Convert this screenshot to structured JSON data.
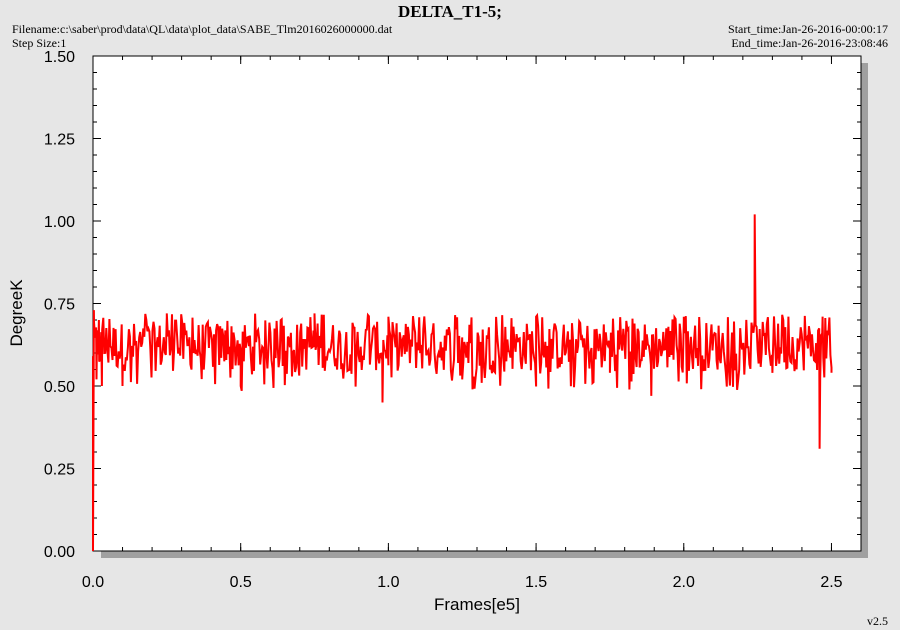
{
  "header": {
    "title": "DELTA_T1-5;",
    "filename": "Filename:c:\\saber\\prod\\data\\QL\\data\\plot_data\\SABE_Tlm2016026000000.dat",
    "step_size": "Step Size:1",
    "start_time": "Start_time:Jan-26-2016-00:00:17",
    "end_time": "End_time:Jan-26-2016-23:08:46"
  },
  "footer": {
    "version": "v2.5"
  },
  "colors": {
    "series": "#ff0000",
    "plot_bg": "#ffffff",
    "page_bg": "#e6e6e6",
    "shadow": "#a0a0a0"
  },
  "chart_data": {
    "type": "line",
    "title": "DELTA_T1-5;",
    "xlabel": "Frames[e5]",
    "ylabel": "DegreeK",
    "xlim": [
      0,
      2.6
    ],
    "ylim": [
      0,
      1.5
    ],
    "x_ticks": [
      "0.0",
      "0.5",
      "1.0",
      "1.5",
      "2.0",
      "2.5"
    ],
    "y_ticks": [
      "0.00",
      "0.25",
      "0.50",
      "0.75",
      "1.00",
      "1.25",
      "1.50"
    ],
    "grid": false,
    "series": [
      {
        "band_low": 0.545,
        "band_high": 0.695,
        "x_start": 0.0,
        "x_end": 2.5,
        "points": [
          [
            0.0,
            0.0
          ],
          [
            0.003,
            0.73
          ],
          [
            0.012,
            0.52
          ],
          [
            0.02,
            0.7
          ],
          [
            0.03,
            0.5
          ],
          [
            0.1,
            0.5
          ],
          [
            0.25,
            0.72
          ],
          [
            0.5,
            0.5
          ],
          [
            0.75,
            0.72
          ],
          [
            0.98,
            0.45
          ],
          [
            1.0,
            0.71
          ],
          [
            1.25,
            0.52
          ],
          [
            1.5,
            0.71
          ],
          [
            1.75,
            0.54
          ],
          [
            1.89,
            0.47
          ],
          [
            2.0,
            0.71
          ],
          [
            2.24,
            1.02
          ],
          [
            2.3,
            0.54
          ],
          [
            2.46,
            0.31
          ],
          [
            2.47,
            0.71
          ],
          [
            2.5,
            0.54
          ]
        ]
      }
    ]
  }
}
